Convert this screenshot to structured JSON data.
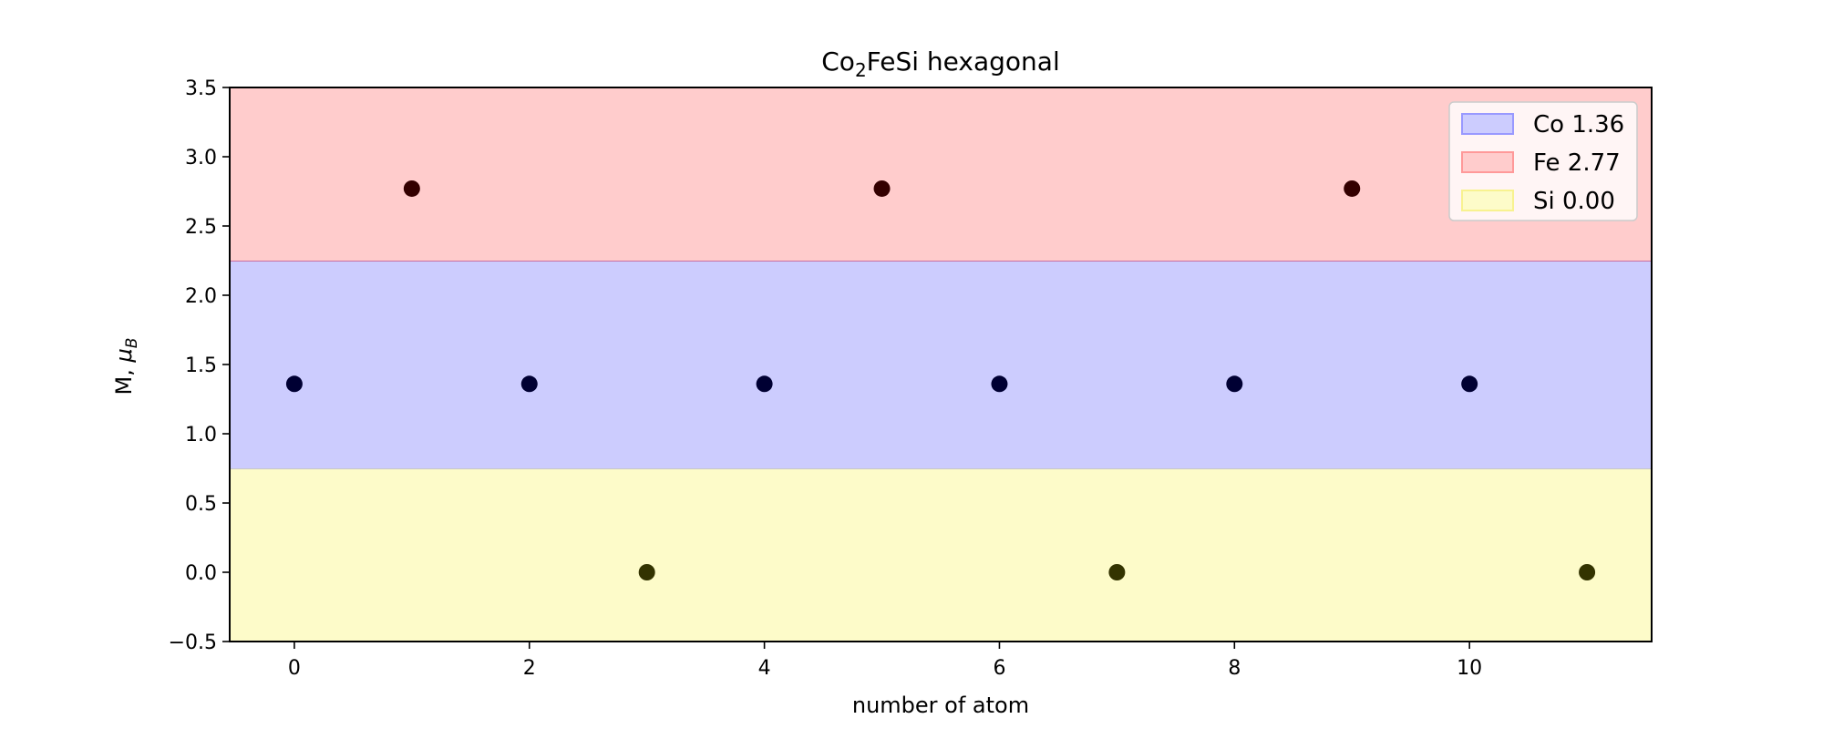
{
  "chart_data": {
    "type": "scatter",
    "title_main": "Co",
    "title_sub": "2",
    "title_rest": "FeSi hexagonal",
    "xlabel": "number of atom",
    "ylabel_main": "M, ",
    "ylabel_mu": "μ",
    "ylabel_sub": "B",
    "xlim": [
      -0.55,
      11.55
    ],
    "ylim": [
      -0.5,
      3.5
    ],
    "xticks": [
      0,
      2,
      4,
      6,
      8,
      10
    ],
    "xtick_labels": [
      "0",
      "2",
      "4",
      "6",
      "8",
      "10"
    ],
    "yticks": [
      -0.5,
      0.0,
      0.5,
      1.0,
      1.5,
      2.0,
      2.5,
      3.0,
      3.5
    ],
    "ytick_labels": [
      "−0.5",
      "0.0",
      "0.5",
      "1.0",
      "1.5",
      "2.0",
      "2.5",
      "3.0",
      "3.5"
    ],
    "bands": [
      {
        "name": "Si",
        "y0": -0.5,
        "y1": 0.75,
        "fill": "#fdfbc9",
        "edge": "#c8c8c8"
      },
      {
        "name": "Co",
        "y0": 0.75,
        "y1": 2.25,
        "fill": "#ccccfe",
        "edge": "#c86ea0"
      },
      {
        "name": "Fe",
        "y0": 2.25,
        "y1": 3.5,
        "fill": "#ffcccc",
        "edge": "#ffcccc"
      }
    ],
    "series": [
      {
        "name": "Co",
        "color": "#000033",
        "x": [
          0,
          2,
          4,
          6,
          8,
          10
        ],
        "y": [
          1.36,
          1.36,
          1.36,
          1.36,
          1.36,
          1.36
        ]
      },
      {
        "name": "Fe",
        "color": "#330000",
        "x": [
          1,
          5,
          9
        ],
        "y": [
          2.77,
          2.77,
          2.77
        ]
      },
      {
        "name": "Si",
        "color": "#333300",
        "x": [
          3,
          7,
          11
        ],
        "y": [
          0.0,
          0.0,
          0.0
        ]
      }
    ],
    "legend": {
      "placement": "top-right",
      "entries": [
        {
          "label": "Co 1.36",
          "fill": "#ccccfe",
          "edge": "#9999ff"
        },
        {
          "label": "Fe 2.77",
          "fill": "#ffcccc",
          "edge": "#ff9999"
        },
        {
          "label": "Si 0.00",
          "fill": "#fdfbc9",
          "edge": "#f8f290"
        }
      ]
    }
  }
}
